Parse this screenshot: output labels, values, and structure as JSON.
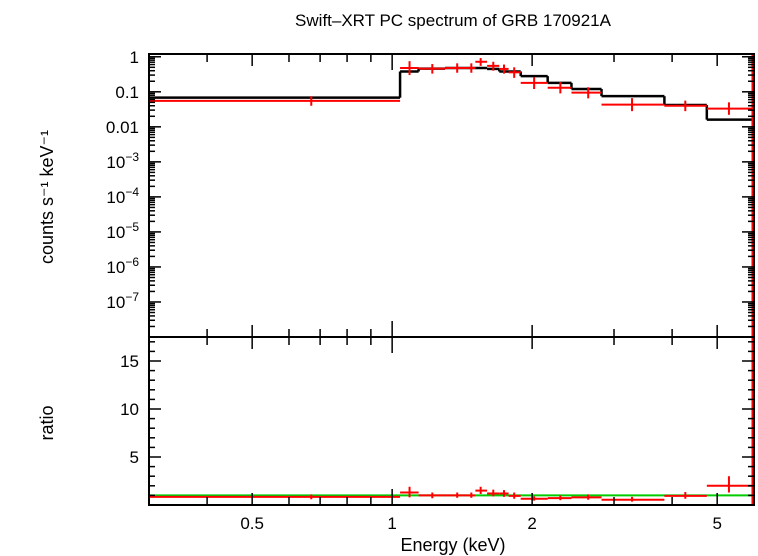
{
  "chart_data": [
    {
      "type": "scatter",
      "title": "Swift–XRT PC spectrum of GRB 170921A",
      "ylabel": "counts s⁻¹ keV⁻¹",
      "xscale": "log",
      "yscale": "log",
      "xlim": [
        0.3,
        6.0
      ],
      "ylim": [
        1e-08,
        1.2
      ],
      "ytick_labels": [
        {
          "value": 1,
          "label": "1"
        },
        {
          "value": 0.1,
          "label": "0.1"
        },
        {
          "value": 0.01,
          "label": "0.01"
        },
        {
          "value": 0.001,
          "base": "10",
          "exp": "−3"
        },
        {
          "value": 0.0001,
          "base": "10",
          "exp": "−4"
        },
        {
          "value": 1e-05,
          "base": "10",
          "exp": "−5"
        },
        {
          "value": 1e-06,
          "base": "10",
          "exp": "−6"
        },
        {
          "value": 1e-07,
          "base": "10",
          "exp": "−7"
        }
      ],
      "data_color": "#ff0000",
      "model_color": "#000000",
      "data": [
        {
          "x": 0.67,
          "xlo": 0.3,
          "xhi": 1.04,
          "y": 0.055,
          "ylo": 0.04,
          "yhi": 0.075
        },
        {
          "x": 1.09,
          "xlo": 1.04,
          "xhi": 1.14,
          "y": 0.48,
          "ylo": 0.3,
          "yhi": 0.75
        },
        {
          "x": 1.22,
          "xlo": 1.14,
          "xhi": 1.3,
          "y": 0.46,
          "ylo": 0.33,
          "yhi": 0.62
        },
        {
          "x": 1.38,
          "xlo": 1.3,
          "xhi": 1.46,
          "y": 0.48,
          "ylo": 0.35,
          "yhi": 0.65
        },
        {
          "x": 1.48,
          "xlo": 1.46,
          "xhi": 1.51,
          "y": 0.48,
          "ylo": 0.35,
          "yhi": 0.65
        },
        {
          "x": 1.55,
          "xlo": 1.51,
          "xhi": 1.6,
          "y": 0.72,
          "ylo": 0.55,
          "yhi": 0.92
        },
        {
          "x": 1.65,
          "xlo": 1.6,
          "xhi": 1.7,
          "y": 0.55,
          "ylo": 0.4,
          "yhi": 0.72
        },
        {
          "x": 1.74,
          "xlo": 1.7,
          "xhi": 1.78,
          "y": 0.45,
          "ylo": 0.33,
          "yhi": 0.6
        },
        {
          "x": 1.83,
          "xlo": 1.78,
          "xhi": 1.89,
          "y": 0.36,
          "ylo": 0.25,
          "yhi": 0.5
        },
        {
          "x": 2.02,
          "xlo": 1.89,
          "xhi": 2.16,
          "y": 0.18,
          "ylo": 0.12,
          "yhi": 0.26
        },
        {
          "x": 2.3,
          "xlo": 2.16,
          "xhi": 2.43,
          "y": 0.13,
          "ylo": 0.09,
          "yhi": 0.19
        },
        {
          "x": 2.64,
          "xlo": 2.43,
          "xhi": 2.82,
          "y": 0.095,
          "ylo": 0.065,
          "yhi": 0.135
        },
        {
          "x": 3.28,
          "xlo": 2.82,
          "xhi": 3.85,
          "y": 0.043,
          "ylo": 0.028,
          "yhi": 0.066
        },
        {
          "x": 4.27,
          "xlo": 3.85,
          "xhi": 4.75,
          "y": 0.04,
          "ylo": 0.028,
          "yhi": 0.056
        },
        {
          "x": 5.3,
          "xlo": 4.75,
          "xhi": 5.95,
          "y": 0.033,
          "ylo": 0.022,
          "yhi": 0.05
        }
      ],
      "model": [
        {
          "xlo": 0.3,
          "xhi": 1.04,
          "y": 0.068
        },
        {
          "xlo": 1.04,
          "xhi": 1.14,
          "y": 0.38
        },
        {
          "xlo": 1.14,
          "xhi": 1.3,
          "y": 0.46
        },
        {
          "xlo": 1.3,
          "xhi": 1.46,
          "y": 0.48
        },
        {
          "xlo": 1.46,
          "xhi": 1.6,
          "y": 0.48
        },
        {
          "xlo": 1.6,
          "xhi": 1.7,
          "y": 0.45
        },
        {
          "xlo": 1.7,
          "xhi": 1.89,
          "y": 0.38
        },
        {
          "xlo": 1.89,
          "xhi": 2.16,
          "y": 0.28
        },
        {
          "xlo": 2.16,
          "xhi": 2.43,
          "y": 0.18
        },
        {
          "xlo": 2.43,
          "xhi": 2.82,
          "y": 0.12
        },
        {
          "xlo": 2.82,
          "xhi": 3.85,
          "y": 0.075
        },
        {
          "xlo": 3.85,
          "xhi": 4.75,
          "y": 0.042
        },
        {
          "xlo": 4.75,
          "xhi": 5.95,
          "y": 0.016
        }
      ],
      "edge_error": {
        "x": 5.97,
        "ylo": 1e-08,
        "yhi": 1.2
      }
    },
    {
      "type": "scatter",
      "xlabel": "Energy (keV)",
      "ylabel": "ratio",
      "xscale": "log",
      "xlim": [
        0.3,
        6.0
      ],
      "ylim": [
        0,
        17.5
      ],
      "x_ticks": [
        {
          "value": 0.5,
          "label": "0.5"
        },
        {
          "value": 1,
          "label": "1"
        },
        {
          "value": 2,
          "label": "2"
        },
        {
          "value": 5,
          "label": "5"
        }
      ],
      "y_ticks": [
        {
          "value": 5,
          "label": "5"
        },
        {
          "value": 10,
          "label": "10"
        },
        {
          "value": 15,
          "label": "15"
        }
      ],
      "reference_line": {
        "y": 1,
        "color": "#00cc00"
      },
      "data_color": "#ff0000",
      "data": [
        {
          "x": 0.67,
          "xlo": 0.3,
          "xhi": 1.04,
          "y": 0.85,
          "ylo": 0.6,
          "yhi": 1.1
        },
        {
          "x": 1.09,
          "xlo": 1.04,
          "xhi": 1.14,
          "y": 1.3,
          "ylo": 0.8,
          "yhi": 1.9
        },
        {
          "x": 1.22,
          "xlo": 1.14,
          "xhi": 1.3,
          "y": 1.0,
          "ylo": 0.7,
          "yhi": 1.3
        },
        {
          "x": 1.38,
          "xlo": 1.3,
          "xhi": 1.46,
          "y": 1.0,
          "ylo": 0.75,
          "yhi": 1.3
        },
        {
          "x": 1.48,
          "xlo": 1.46,
          "xhi": 1.51,
          "y": 1.0,
          "ylo": 0.75,
          "yhi": 1.3
        },
        {
          "x": 1.55,
          "xlo": 1.51,
          "xhi": 1.6,
          "y": 1.5,
          "ylo": 1.15,
          "yhi": 1.9
        },
        {
          "x": 1.65,
          "xlo": 1.6,
          "xhi": 1.7,
          "y": 1.2,
          "ylo": 0.9,
          "yhi": 1.6
        },
        {
          "x": 1.74,
          "xlo": 1.7,
          "xhi": 1.78,
          "y": 1.2,
          "ylo": 0.85,
          "yhi": 1.55
        },
        {
          "x": 1.83,
          "xlo": 1.78,
          "xhi": 1.89,
          "y": 0.95,
          "ylo": 0.65,
          "yhi": 1.3
        },
        {
          "x": 2.02,
          "xlo": 1.89,
          "xhi": 2.16,
          "y": 0.65,
          "ylo": 0.45,
          "yhi": 0.9
        },
        {
          "x": 2.3,
          "xlo": 2.16,
          "xhi": 2.43,
          "y": 0.72,
          "ylo": 0.5,
          "yhi": 1.0
        },
        {
          "x": 2.64,
          "xlo": 2.43,
          "xhi": 2.82,
          "y": 0.8,
          "ylo": 0.55,
          "yhi": 1.1
        },
        {
          "x": 3.28,
          "xlo": 2.82,
          "xhi": 3.85,
          "y": 0.55,
          "ylo": 0.35,
          "yhi": 0.85
        },
        {
          "x": 4.27,
          "xlo": 3.85,
          "xhi": 4.75,
          "y": 0.95,
          "ylo": 0.65,
          "yhi": 1.35
        },
        {
          "x": 5.3,
          "xlo": 4.75,
          "xhi": 5.95,
          "y": 2.0,
          "ylo": 1.3,
          "yhi": 3.0
        }
      ],
      "edge_error": {
        "x": 5.97,
        "ylo": 0,
        "yhi": 17.5
      }
    }
  ]
}
